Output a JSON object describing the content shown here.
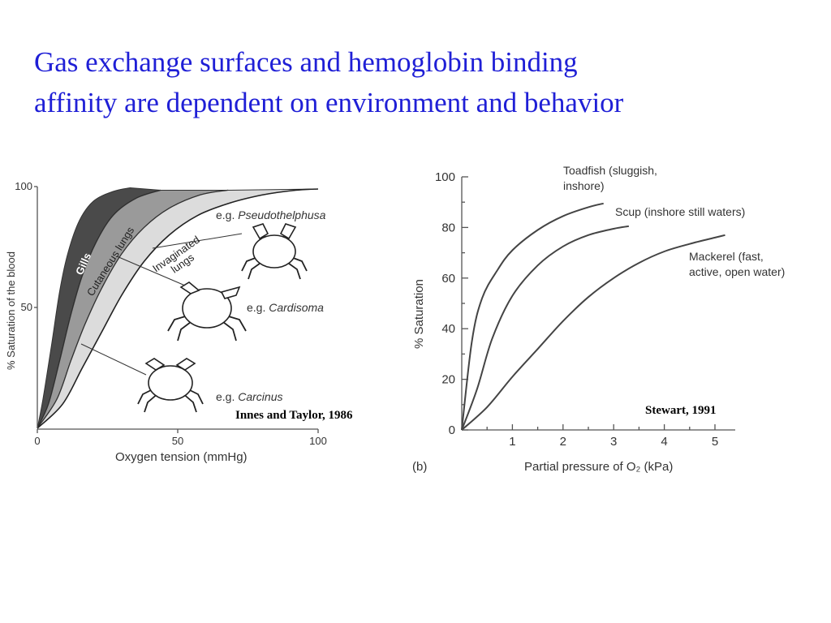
{
  "title": {
    "line1": "Gas exchange surfaces and hemoglobin binding",
    "line2": "affinity are dependent on environment and behavior"
  },
  "chart_data": [
    {
      "type": "area",
      "xlabel": "Oxygen tension (mmHg)",
      "ylabel": "% Saturation of the blood",
      "xlim": [
        0,
        100
      ],
      "ylim": [
        0,
        100
      ],
      "x_ticks": [
        "0",
        "50",
        "100"
      ],
      "y_ticks": [
        "50",
        "100"
      ],
      "series": [
        {
          "name": "Gills",
          "color": "#4a4a4a",
          "upper": [
            [
              0,
              0
            ],
            [
              2,
              12
            ],
            [
              5,
              34
            ],
            [
              8,
              57
            ],
            [
              11,
              73
            ],
            [
              15,
              86
            ],
            [
              20,
              94
            ],
            [
              27,
              98
            ],
            [
              33,
              99.5
            ]
          ],
          "lower": [
            [
              0,
              0
            ],
            [
              4,
              10
            ],
            [
              8,
              28
            ],
            [
              12,
              47
            ],
            [
              16,
              63
            ],
            [
              21,
              77
            ],
            [
              27,
              88
            ],
            [
              35,
              95
            ],
            [
              44,
              98.5
            ]
          ]
        },
        {
          "name": "Cutaneous lungs",
          "color": "#9a9a9a",
          "upper": [
            [
              0,
              0
            ],
            [
              4,
              10
            ],
            [
              8,
              28
            ],
            [
              12,
              47
            ],
            [
              16,
              63
            ],
            [
              21,
              77
            ],
            [
              27,
              88
            ],
            [
              35,
              95
            ],
            [
              44,
              98.5
            ]
          ],
          "lower": [
            [
              0,
              0
            ],
            [
              7,
              12
            ],
            [
              12,
              28
            ],
            [
              17,
              43
            ],
            [
              23,
              58
            ],
            [
              30,
              72
            ],
            [
              38,
              83
            ],
            [
              47,
              91
            ],
            [
              58,
              96.5
            ],
            [
              68,
              98.5
            ]
          ]
        },
        {
          "name": "Invaginated lungs",
          "color": "#dcdcdc",
          "upper": [
            [
              0,
              0
            ],
            [
              7,
              12
            ],
            [
              12,
              28
            ],
            [
              17,
              43
            ],
            [
              23,
              58
            ],
            [
              30,
              72
            ],
            [
              38,
              83
            ],
            [
              47,
              91
            ],
            [
              58,
              96.5
            ],
            [
              68,
              98.5
            ]
          ],
          "lower": [
            [
              0,
              0
            ],
            [
              9,
              10
            ],
            [
              16,
              25
            ],
            [
              23,
              40
            ],
            [
              30,
              55
            ],
            [
              38,
              69
            ],
            [
              47,
              80
            ],
            [
              57,
              88
            ],
            [
              68,
              93
            ],
            [
              80,
              96.5
            ],
            [
              92,
              98.5
            ],
            [
              100,
              99
            ]
          ]
        }
      ],
      "annotations": [
        "e.g. Pseudothelphusa",
        "e.g. Cardisoma",
        "e.g. Carcinus"
      ],
      "source": "Innes and Taylor, 1986"
    },
    {
      "type": "line",
      "xlabel": "Partial pressure of O₂ (kPa)",
      "ylabel": "% Saturation",
      "panel_label": "(b)",
      "xlim": [
        0,
        5.5
      ],
      "ylim": [
        0,
        100
      ],
      "x_ticks": [
        "1",
        "2",
        "3",
        "4",
        "5"
      ],
      "y_ticks": [
        "0",
        "20",
        "40",
        "60",
        "80",
        "100"
      ],
      "series": [
        {
          "name": "Toadfish (sluggish, inshore)",
          "points": [
            [
              0,
              0
            ],
            [
              0.2,
              35
            ],
            [
              0.4,
              52
            ],
            [
              0.7,
              63
            ],
            [
              1.0,
              71
            ],
            [
              1.5,
              79
            ],
            [
              2.0,
              84.5
            ],
            [
              2.5,
              88
            ],
            [
              2.8,
              89.5
            ]
          ]
        },
        {
          "name": "Scup (inshore still waters)",
          "points": [
            [
              0,
              0
            ],
            [
              0.3,
              16
            ],
            [
              0.6,
              36
            ],
            [
              1.0,
              53
            ],
            [
              1.5,
              65
            ],
            [
              2.0,
              72.5
            ],
            [
              2.5,
              77
            ],
            [
              3.0,
              79.5
            ],
            [
              3.3,
              80.5
            ]
          ]
        },
        {
          "name": "Mackerel (fast, active, open water)",
          "points": [
            [
              0,
              0
            ],
            [
              0.5,
              9
            ],
            [
              1.0,
              21
            ],
            [
              1.5,
              32
            ],
            [
              2.0,
              43
            ],
            [
              2.5,
              52.5
            ],
            [
              3.0,
              60
            ],
            [
              3.5,
              66
            ],
            [
              4.0,
              70.5
            ],
            [
              4.5,
              73.5
            ],
            [
              5.0,
              76
            ],
            [
              5.2,
              77
            ]
          ]
        }
      ],
      "source": "Stewart, 1991"
    }
  ]
}
